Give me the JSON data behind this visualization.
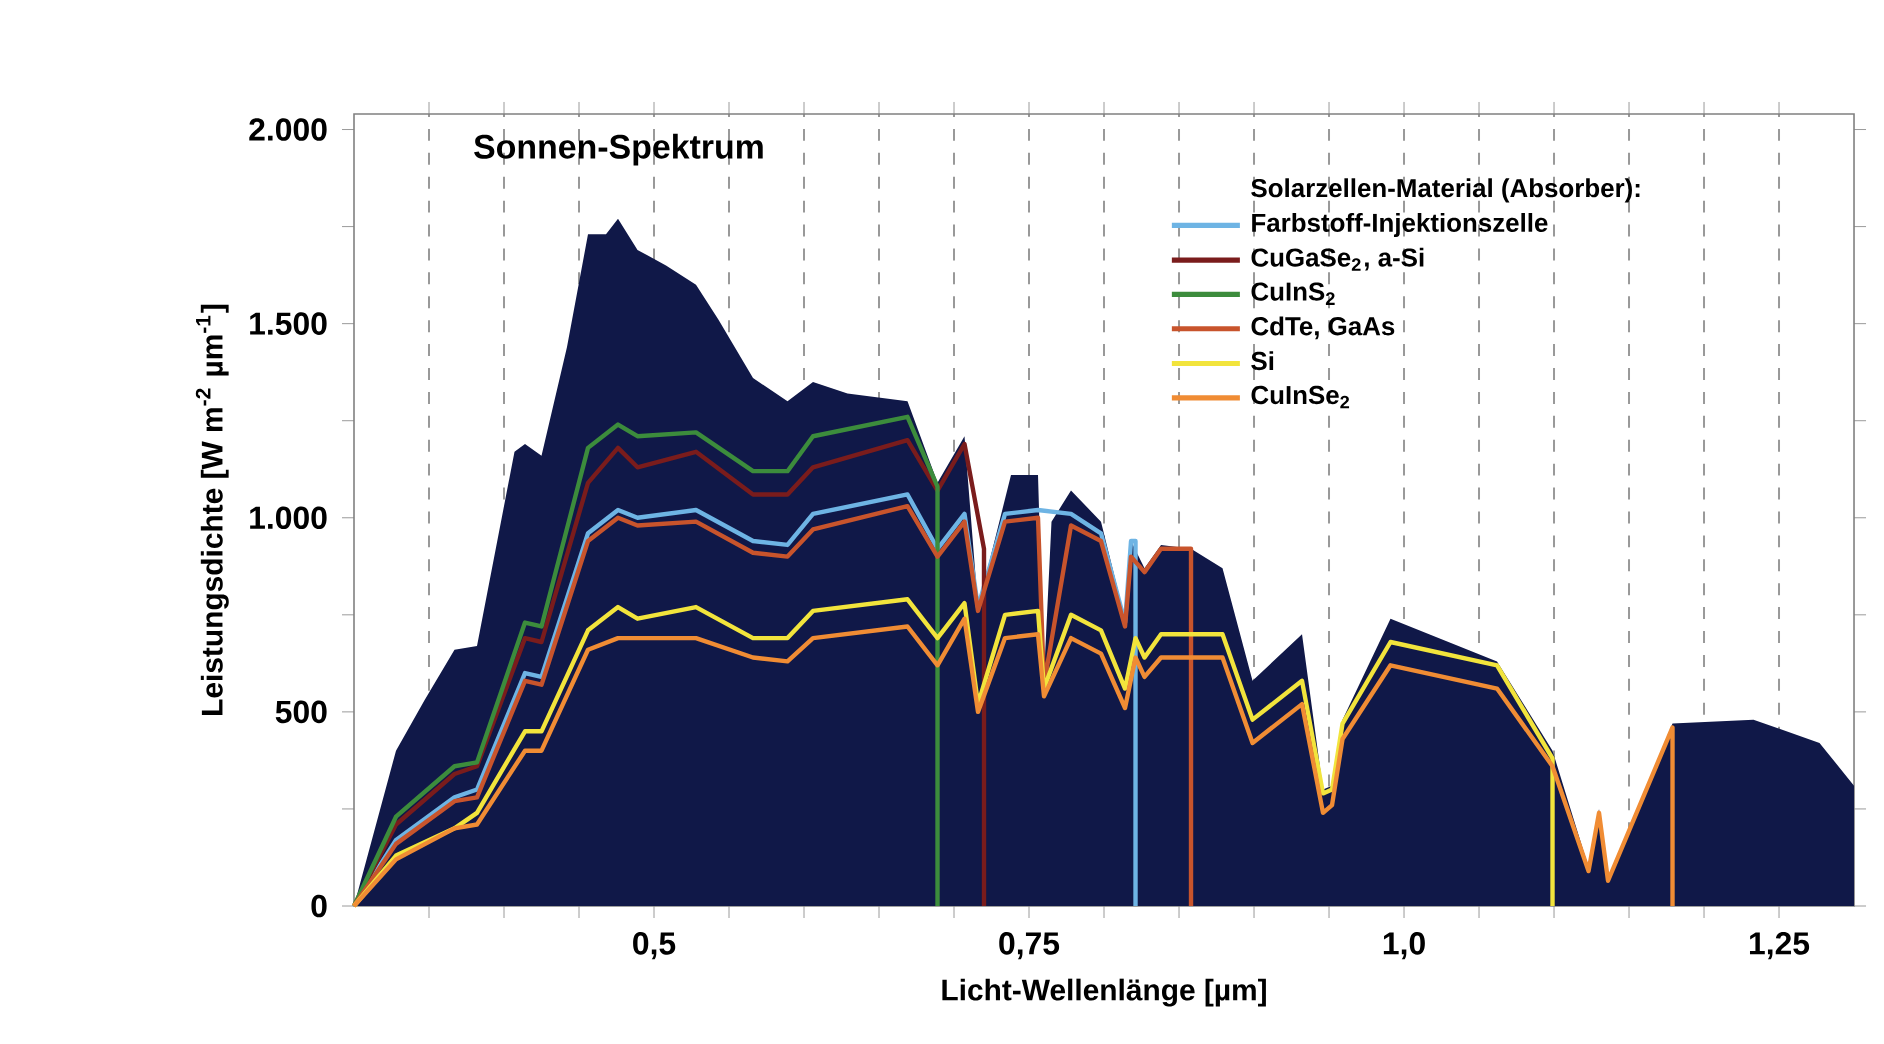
{
  "chart_data": {
    "type": "line",
    "xlabel": "Licht-Wellenlänge [µm]",
    "ylabel": "Leistungsdichte [W m$^{-2}$ µm$^{-1}$]",
    "legend_title": "Solarzellen-Material (Absorber):",
    "legend": "top right",
    "grid": "x",
    "line_style": "solid",
    "xlim": [
      0.3,
      1.3
    ],
    "ylim": [
      0,
      2040
    ],
    "xticks": [
      {
        "value": 0.35,
        "label": null
      },
      {
        "value": 0.4,
        "label": null
      },
      {
        "value": 0.45,
        "label": null
      },
      {
        "value": 0.5,
        "label": "0,5"
      },
      {
        "value": 0.55,
        "label": null
      },
      {
        "value": 0.6,
        "label": null
      },
      {
        "value": 0.65,
        "label": null
      },
      {
        "value": 0.7,
        "label": null
      },
      {
        "value": 0.75,
        "label": "0,75"
      },
      {
        "value": 0.8,
        "label": null
      },
      {
        "value": 0.85,
        "label": null
      },
      {
        "value": 0.9,
        "label": null
      },
      {
        "value": 0.95,
        "label": null
      },
      {
        "value": 1.0,
        "label": "1,0"
      },
      {
        "value": 1.05,
        "label": null
      },
      {
        "value": 1.1,
        "label": null
      },
      {
        "value": 1.15,
        "label": null
      },
      {
        "value": 1.2,
        "label": null
      },
      {
        "value": 1.25,
        "label": "1,25"
      }
    ],
    "yticks": [
      0,
      {
        "value": 250,
        "label": null
      },
      500,
      {
        "value": 750,
        "label": null
      },
      {
        "value": 1000,
        "label": "1.000"
      },
      {
        "value": 1250,
        "label": null
      },
      {
        "value": 1500,
        "label": "1.500"
      },
      {
        "value": 1750,
        "label": null
      },
      {
        "value": 2000,
        "label": "2.000"
      }
    ],
    "series": [
      {
        "name": "Sonnen-Spektrum",
        "type": "area",
        "color": "#101848",
        "x": [
          0.3,
          0.328,
          0.347,
          0.367,
          0.382,
          0.407,
          0.414,
          0.425,
          0.442,
          0.456,
          0.468,
          0.476,
          0.489,
          0.508,
          0.528,
          0.543,
          0.566,
          0.589,
          0.606,
          0.629,
          0.669,
          0.689,
          0.707,
          0.716,
          0.738,
          0.756,
          0.76,
          0.765,
          0.778,
          0.798,
          0.814,
          0.818,
          0.827,
          0.838,
          0.858,
          0.879,
          0.899,
          0.932,
          0.946,
          0.952,
          0.959,
          0.991,
          1.062,
          1.099,
          1.123,
          1.13,
          1.136,
          1.179,
          1.233,
          1.277,
          1.3
        ],
        "values": [
          0,
          400,
          530,
          660,
          670,
          1170,
          1190,
          1160,
          1440,
          1730,
          1730,
          1770,
          1690,
          1650,
          1600,
          1510,
          1360,
          1300,
          1350,
          1320,
          1300,
          1090,
          1210,
          770,
          1110,
          1110,
          590,
          990,
          1070,
          990,
          740,
          940,
          870,
          930,
          920,
          870,
          580,
          700,
          300,
          310,
          480,
          740,
          630,
          400,
          100,
          250,
          70,
          470,
          480,
          420,
          310
        ]
      },
      {
        "name": "Farbstoff-Injektionszelle",
        "color": "#6eb4e4",
        "x": [
          0.3,
          0.328,
          0.367,
          0.382,
          0.414,
          0.425,
          0.456,
          0.476,
          0.489,
          0.528,
          0.566,
          0.589,
          0.606,
          0.669,
          0.689,
          0.707,
          0.716,
          0.734,
          0.756,
          0.76,
          0.778,
          0.798,
          0.814,
          0.818,
          0.821,
          0.821
        ],
        "values": [
          0,
          170,
          280,
          300,
          600,
          590,
          960,
          1020,
          1000,
          1020,
          940,
          930,
          1010,
          1060,
          920,
          1010,
          770,
          1010,
          1020,
          null,
          1010,
          960,
          730,
          940,
          940,
          0
        ]
      },
      {
        "name": "CuGaSe$_{2}$, a-Si",
        "color": "#7a1c1c",
        "x": [
          0.3,
          0.328,
          0.367,
          0.382,
          0.414,
          0.425,
          0.456,
          0.476,
          0.489,
          0.528,
          0.566,
          0.589,
          0.606,
          0.669,
          0.689,
          0.707,
          0.72,
          0.72
        ],
        "values": [
          0,
          210,
          340,
          360,
          690,
          680,
          1090,
          1180,
          1130,
          1170,
          1060,
          1060,
          1130,
          1200,
          1070,
          1190,
          920,
          0
        ]
      },
      {
        "name": "CuInS$_{2}$",
        "color": "#3c8c3c",
        "x": [
          0.3,
          0.328,
          0.367,
          0.382,
          0.414,
          0.425,
          0.456,
          0.476,
          0.489,
          0.528,
          0.566,
          0.589,
          0.606,
          0.669,
          0.689,
          0.689
        ],
        "values": [
          0,
          230,
          360,
          370,
          730,
          720,
          1180,
          1240,
          1210,
          1220,
          1120,
          1120,
          1210,
          1260,
          1080,
          0
        ]
      },
      {
        "name": "CdTe, GaAs",
        "color": "#c8542c",
        "x": [
          0.3,
          0.328,
          0.367,
          0.382,
          0.414,
          0.425,
          0.456,
          0.476,
          0.489,
          0.528,
          0.566,
          0.589,
          0.606,
          0.669,
          0.689,
          0.707,
          0.716,
          0.734,
          0.756,
          0.76,
          0.778,
          0.798,
          0.814,
          0.818,
          0.827,
          0.838,
          0.858,
          0.858
        ],
        "values": [
          0,
          160,
          270,
          280,
          580,
          570,
          940,
          1000,
          980,
          990,
          910,
          900,
          970,
          1030,
          900,
          990,
          760,
          990,
          1000,
          570,
          980,
          940,
          720,
          900,
          860,
          920,
          920,
          0
        ]
      },
      {
        "name": "Si",
        "color": "#f2e43c",
        "x": [
          0.3,
          0.328,
          0.367,
          0.382,
          0.414,
          0.425,
          0.456,
          0.476,
          0.489,
          0.528,
          0.566,
          0.589,
          0.606,
          0.669,
          0.689,
          0.707,
          0.716,
          0.734,
          0.756,
          0.76,
          0.778,
          0.798,
          0.814,
          0.821,
          0.827,
          0.838,
          0.879,
          0.899,
          0.932,
          0.946,
          0.952,
          0.959,
          0.991,
          1.062,
          1.099,
          1.099
        ],
        "values": [
          0,
          130,
          200,
          240,
          450,
          450,
          710,
          770,
          740,
          770,
          690,
          690,
          760,
          790,
          690,
          780,
          520,
          750,
          760,
          560,
          750,
          710,
          560,
          690,
          640,
          700,
          700,
          480,
          580,
          290,
          300,
          470,
          680,
          620,
          380,
          0
        ]
      },
      {
        "name": "CuInSe$_{2}$",
        "color": "#f08c34",
        "x": [
          0.3,
          0.328,
          0.367,
          0.382,
          0.414,
          0.425,
          0.456,
          0.476,
          0.489,
          0.528,
          0.566,
          0.589,
          0.606,
          0.669,
          0.689,
          0.707,
          0.716,
          0.734,
          0.756,
          0.76,
          0.778,
          0.798,
          0.814,
          0.821,
          0.827,
          0.838,
          0.879,
          0.899,
          0.932,
          0.946,
          0.952,
          0.959,
          0.991,
          1.062,
          1.099,
          1.123,
          1.13,
          1.136,
          1.179,
          1.179
        ],
        "values": [
          0,
          120,
          200,
          210,
          400,
          400,
          660,
          690,
          690,
          690,
          640,
          630,
          690,
          720,
          620,
          740,
          500,
          690,
          700,
          540,
          690,
          650,
          510,
          640,
          590,
          640,
          640,
          420,
          520,
          240,
          260,
          430,
          620,
          560,
          360,
          90,
          240,
          65,
          460,
          0
        ]
      }
    ]
  }
}
